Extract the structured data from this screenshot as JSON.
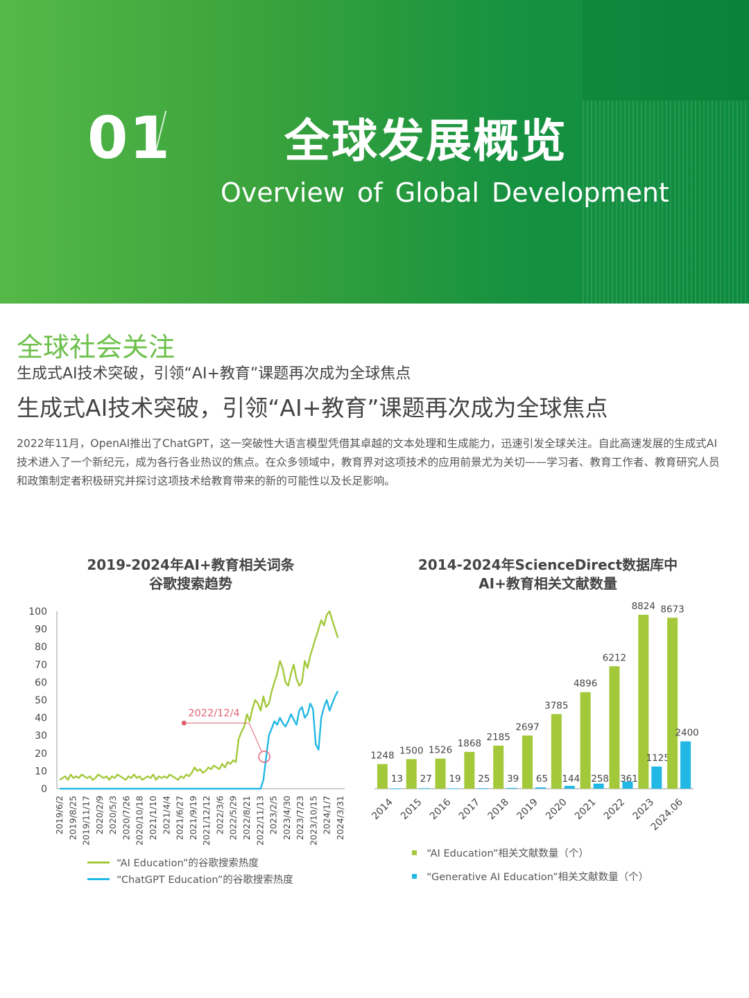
{
  "header": {
    "section_number": "01",
    "title_zh": "全球发展概览",
    "title_en": "Overview of Global Development"
  },
  "section": {
    "heading": "全球社会关注",
    "subheading_small": "生成式AI技术突破，引领“AI+教育”课题再次成为全球焦点",
    "subheading_large": "生成式AI技术突破，引领“AI+教育”课题再次成为全球焦点",
    "paragraph": "2022年11月，OpenAI推出了ChatGPT，这一突破性大语言模型凭借其卓越的文本处理和生成能力，迅速引发全球关注。自此高速发展的生成式AI技术进入了一个新纪元，成为各行各业热议的焦点。在众多领域中，教育界对这项技术的应用前景尤为关切——学习者、教育工作者、教育研究人员和政策制定者积极研究并探讨这项技术给教育带来的新的可能性以及长足影响。"
  },
  "colors": {
    "green": "#a3c93a",
    "blue": "#22b8e6",
    "heading_green": "#6cc04a",
    "annotation": "#e06070"
  },
  "chart_data": [
    {
      "type": "line",
      "title_line1": "2019-2024年AI+教育相关词条",
      "title_line2": "谷歌搜索趋势",
      "ylim": [
        0,
        100
      ],
      "yticks": [
        0,
        10,
        20,
        30,
        40,
        50,
        60,
        70,
        80,
        90,
        100
      ],
      "x_tick_labels": [
        "2019/6/2",
        "2019/8/25",
        "2019/11/17",
        "2020/2/9",
        "2020/5/3",
        "2020/7/26",
        "2020/10/18",
        "2021/1/10",
        "2021/4/4",
        "2021/6/27",
        "2021/9/19",
        "2021/12/12",
        "2022/3/6",
        "2022/5/29",
        "2022/8/21",
        "2022/11/13",
        "2023/2/5",
        "2023/4/30",
        "2023/7/23",
        "2023/10/15",
        "2024/1/7",
        "2024/3/31"
      ],
      "annotation": {
        "label": "2022/12/4",
        "x_index": 15.3,
        "y": 18
      },
      "series": [
        {
          "name": "“AI Education”的谷歌搜索热度",
          "values": [
            5,
            6,
            7,
            5,
            8,
            6,
            7,
            6,
            8,
            7,
            6,
            7,
            5,
            6,
            8,
            7,
            6,
            7,
            5,
            7,
            6,
            8,
            7,
            6,
            5,
            7,
            6,
            8,
            6,
            7,
            5,
            6,
            7,
            6,
            8,
            5,
            7,
            6,
            7,
            6,
            8,
            7,
            6,
            5,
            7,
            6,
            8,
            7,
            9,
            12,
            10,
            11,
            9,
            10,
            12,
            11,
            13,
            12,
            11,
            14,
            12,
            15,
            14,
            16,
            15,
            28,
            32,
            35,
            42,
            38,
            45,
            50,
            48,
            44,
            52,
            46,
            48,
            55,
            60,
            65,
            72,
            68,
            60,
            58,
            65,
            70,
            62,
            58,
            60,
            72,
            68,
            75,
            80,
            85,
            90,
            95,
            92,
            98,
            100,
            95,
            90,
            85
          ],
          "x_start": 0,
          "x_step": 0.2059
        },
        {
          "name": "“ChatGPT Education”的谷歌搜索热度",
          "values": [
            0,
            0,
            0,
            0,
            0,
            0,
            0,
            0,
            0,
            0,
            0,
            0,
            0,
            0,
            0,
            0,
            0,
            0,
            0,
            0,
            0,
            0,
            0,
            0,
            0,
            0,
            0,
            0,
            0,
            0,
            0,
            0,
            0,
            0,
            0,
            0,
            0,
            0,
            0,
            0,
            0,
            0,
            0,
            0,
            0,
            0,
            0,
            0,
            0,
            0,
            0,
            0,
            0,
            0,
            0,
            0,
            0,
            0,
            0,
            0,
            0,
            0,
            0,
            0,
            0,
            0,
            0,
            0,
            0,
            0,
            0,
            0,
            0,
            0,
            5,
            18,
            30,
            34,
            38,
            36,
            40,
            37,
            35,
            38,
            42,
            39,
            36,
            44,
            46,
            40,
            42,
            48,
            45,
            25,
            22,
            40,
            46,
            50,
            44,
            48,
            52,
            55
          ],
          "x_start": 0,
          "x_step": 0.2059
        }
      ]
    },
    {
      "type": "bar",
      "title_line1": "2014-2024年ScienceDirect数据库中",
      "title_line2": "AI+教育相关文献数量",
      "categories": [
        "2014",
        "2015",
        "2016",
        "2017",
        "2018",
        "2019",
        "2020",
        "2021",
        "2022",
        "2023",
        "2024.06"
      ],
      "ylim": [
        0,
        9000
      ],
      "series": [
        {
          "name": "“AI Education”相关文献数量（个）",
          "values": [
            1248,
            1500,
            1526,
            1868,
            2185,
            2697,
            3785,
            4896,
            6212,
            8824,
            8673
          ]
        },
        {
          "name": "“Generative AI Education”相关文献数量（个）",
          "values": [
            13,
            27,
            19,
            25,
            39,
            65,
            144,
            258,
            361,
            1125,
            2400
          ]
        }
      ]
    }
  ]
}
